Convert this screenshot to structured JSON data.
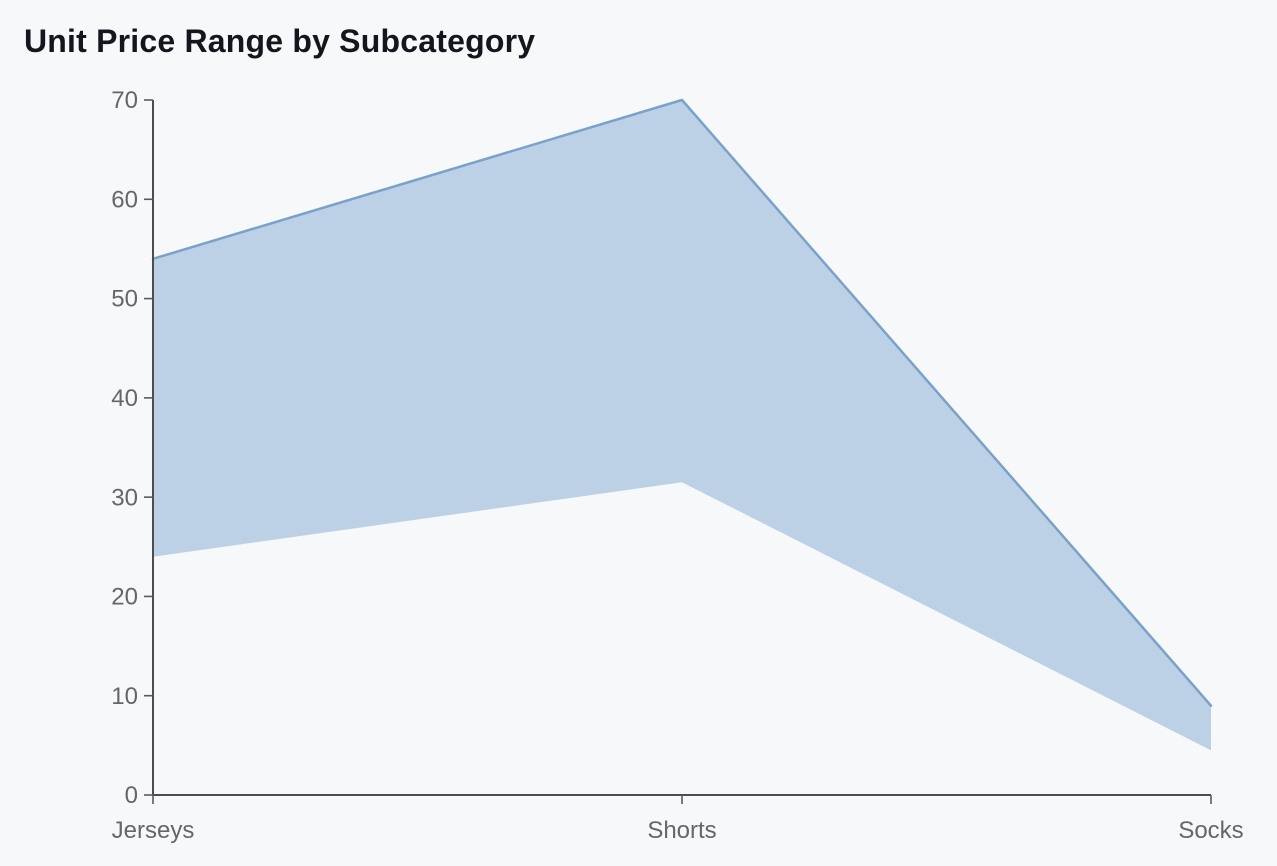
{
  "title": "Unit Price Range by Subcategory",
  "chart_data": {
    "type": "area",
    "subtype": "range-band",
    "title": "Unit Price Range by Subcategory",
    "categories": [
      "Jerseys",
      "Shorts",
      "Socks"
    ],
    "series": [
      {
        "name": "high",
        "values": [
          54,
          70,
          9
        ]
      },
      {
        "name": "low",
        "values": [
          24,
          31.5,
          4.5
        ]
      }
    ],
    "xlabel": "",
    "ylabel": "",
    "ylim": [
      0,
      70
    ],
    "yticks": [
      0,
      10,
      20,
      30,
      40,
      50,
      60,
      70
    ],
    "grid": false,
    "legend": "none",
    "colors": {
      "band_fill": "#bdd1e6",
      "high_line": "#79a2ca",
      "axis": "#4d4d4d",
      "tick_label": "#666666",
      "title": "#15151e",
      "background": "#f7f8fa"
    }
  }
}
